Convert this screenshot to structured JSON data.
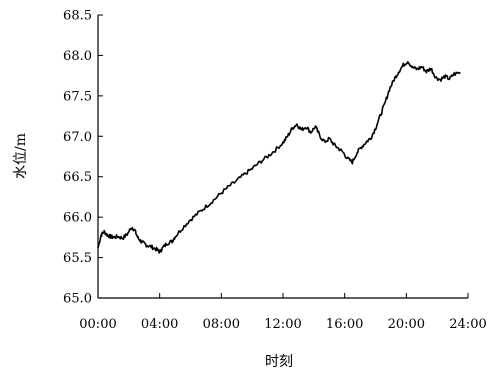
{
  "chart_data": {
    "type": "line",
    "title": "",
    "xlabel": "时刻",
    "ylabel": "水位/m",
    "x_ticks": [
      "00:00",
      "04:00",
      "08:00",
      "12:00",
      "16:00",
      "20:00",
      "24:00"
    ],
    "y_ticks": [
      "65.0",
      "65.5",
      "66.0",
      "66.5",
      "67.0",
      "67.5",
      "68.0",
      "68.5"
    ],
    "xlim_hours": [
      0,
      24
    ],
    "ylim": [
      65.0,
      68.5
    ],
    "grid": false,
    "legend": "none",
    "line_color": "#000000",
    "series": [
      {
        "x_hours": [
          0.0,
          0.2,
          0.4,
          0.6,
          0.8,
          1.0,
          1.3,
          1.6,
          1.9,
          2.2,
          2.4,
          2.6,
          2.8,
          3.0,
          3.2,
          3.5,
          3.8,
          4.0,
          4.2,
          4.5,
          4.8,
          5.0,
          5.5,
          6.0,
          6.5,
          7.0,
          7.5,
          8.0,
          8.5,
          9.0,
          9.5,
          10.0,
          10.5,
          11.0,
          11.5,
          12.0,
          12.3,
          12.6,
          12.9,
          13.2,
          13.5,
          13.8,
          14.1,
          14.4,
          14.7,
          15.0,
          15.3,
          15.6,
          15.9,
          16.2,
          16.5,
          16.8,
          17.1,
          17.4,
          17.7,
          18.0,
          18.3,
          18.6,
          18.9,
          19.2,
          19.5,
          19.8,
          20.1,
          20.4,
          20.7,
          21.0,
          21.3,
          21.6,
          21.9,
          22.2,
          22.5,
          22.8,
          23.1,
          23.5
        ],
        "values": [
          65.62,
          65.78,
          65.82,
          65.78,
          65.76,
          65.75,
          65.76,
          65.74,
          65.79,
          65.88,
          65.83,
          65.74,
          65.7,
          65.67,
          65.65,
          65.63,
          65.6,
          65.57,
          65.62,
          65.68,
          65.7,
          65.76,
          65.87,
          65.97,
          66.05,
          66.13,
          66.21,
          66.3,
          66.38,
          66.45,
          66.53,
          66.6,
          66.68,
          66.75,
          66.83,
          66.92,
          67.0,
          67.1,
          67.15,
          67.08,
          67.12,
          67.05,
          67.12,
          67.0,
          66.93,
          66.97,
          66.9,
          66.85,
          66.8,
          66.72,
          66.68,
          66.8,
          66.87,
          66.93,
          66.98,
          67.1,
          67.25,
          67.4,
          67.58,
          67.7,
          67.8,
          67.88,
          67.93,
          67.85,
          67.83,
          67.86,
          67.8,
          67.84,
          67.73,
          67.7,
          67.74,
          67.71,
          67.77,
          67.79
        ]
      }
    ]
  }
}
